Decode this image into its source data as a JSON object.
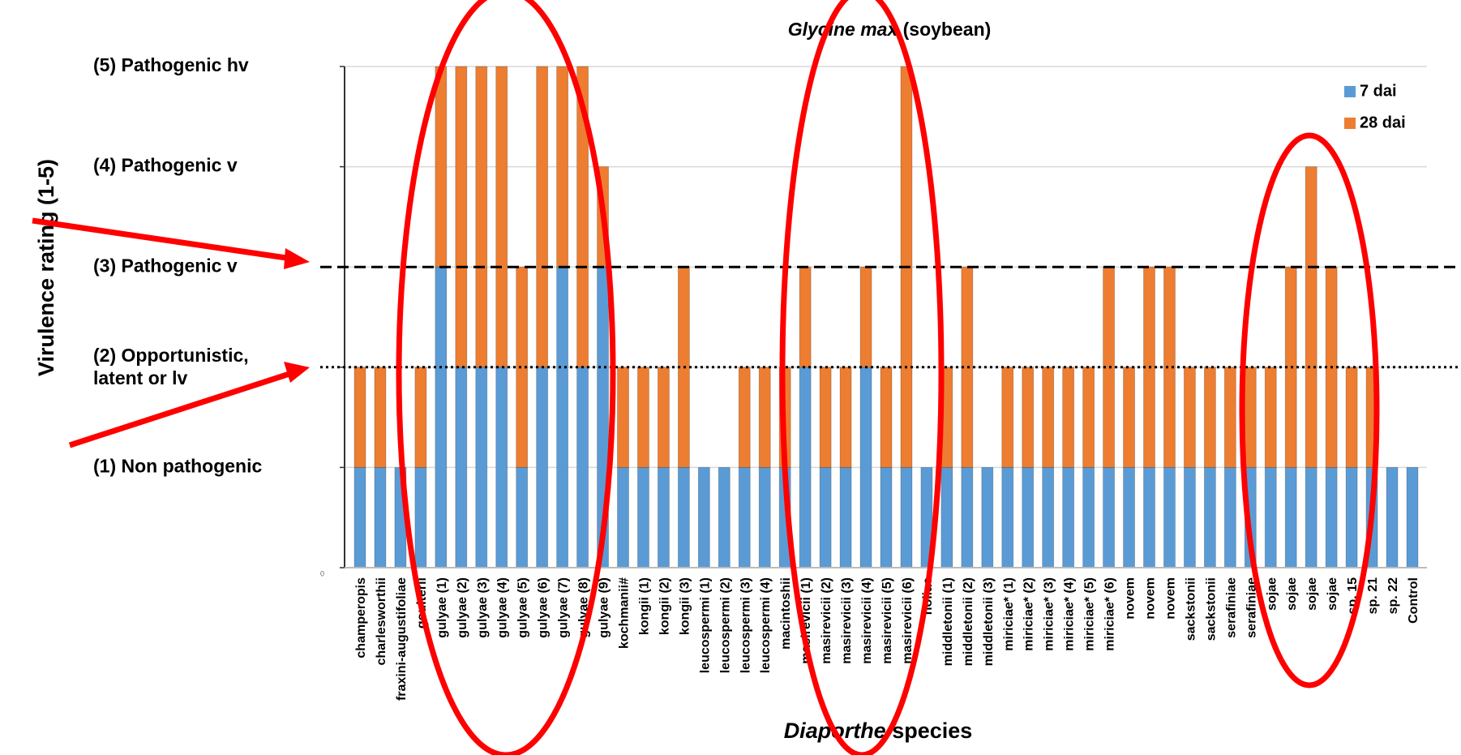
{
  "chart_data": {
    "type": "stacked_bar",
    "title": [
      "Glycine max",
      "(soybean)"
    ],
    "xlabel": [
      "Diaporthe",
      "species"
    ],
    "ylabel": "Virulence rating (1-5)",
    "categories": [
      "champeropis",
      "charlesworthii",
      "fraxini-augustifoliae",
      "goulterii",
      "gulyae (1)",
      "gulyae (2)",
      "gulyae (3)",
      "gulyae (4)",
      "gulyae (5)",
      "gulyae (6)",
      "gulyae (7)",
      "gulyae (8)",
      "gulyae (9)",
      "kochmanii#",
      "kongii (1)",
      "kongii (2)",
      "kongii (3)",
      "leucospermi (1)",
      "leucospermi (2)",
      "leucospermi (3)",
      "leucospermi (4)",
      "macintoshii",
      "masirevicii (1)",
      "masirevicii (2)",
      "masirevicii (3)",
      "masirevicii (4)",
      "masirevicii (5)",
      "masirevicii (6)",
      "holiae",
      "middletonii (1)",
      "middletonii (2)",
      "middletonii (3)",
      "miriciae* (1)",
      "miriciae* (2)",
      "miriciae* (3)",
      "miriciae* (4)",
      "miriciae* (5)",
      "miriciae* (6)",
      "novem",
      "novem",
      "novem",
      "sackstonii",
      "sackstonii",
      "serafiniae",
      "serafiniae",
      "sojae",
      "sojae",
      "sojae",
      "sojae",
      "sp. 15",
      "sp. 21",
      "sp. 22",
      "Control"
    ],
    "series": [
      {
        "name": "7 dai",
        "color": "#5b9bd5",
        "values": [
          1,
          1,
          1,
          1,
          3,
          2,
          2,
          2,
          1,
          2,
          3,
          2,
          3,
          1,
          1,
          1,
          1,
          1,
          1,
          1,
          1,
          1,
          2,
          1,
          1,
          2,
          1,
          1,
          1,
          1,
          1,
          1,
          1,
          1,
          1,
          1,
          1,
          1,
          1,
          1,
          1,
          1,
          1,
          1,
          1,
          1,
          1,
          1,
          1,
          1,
          1,
          1,
          1
        ]
      },
      {
        "name": "28 dai",
        "color": "#ed7d31",
        "values": [
          1,
          1,
          0,
          1,
          2,
          3,
          3,
          3,
          2,
          3,
          2,
          3,
          1,
          1,
          1,
          1,
          2,
          0,
          0,
          1,
          1,
          1,
          1,
          1,
          1,
          1,
          1,
          4,
          0,
          1,
          2,
          0,
          1,
          1,
          1,
          1,
          1,
          2,
          1,
          2,
          2,
          1,
          1,
          1,
          1,
          1,
          2,
          3,
          2,
          1,
          1,
          0,
          0
        ]
      }
    ],
    "ylim": [
      0,
      5
    ],
    "yticks": [
      0,
      {
        "value": 1,
        "label": "(1) Non pathogenic"
      },
      {
        "value": 2,
        "label": "(2) Opportunistic,\nlatent or lv"
      },
      {
        "value": 3,
        "label": "(3) Pathogenic v"
      },
      {
        "value": 4,
        "label": "(4) Pathogenic v"
      },
      {
        "value": 5,
        "label": "(5) Pathogenic hv"
      }
    ],
    "grid": true,
    "legend": "upper right",
    "reference_lines": [
      {
        "value": 3,
        "style": "dashed"
      },
      {
        "value": 2,
        "style": "dotted"
      }
    ]
  }
}
